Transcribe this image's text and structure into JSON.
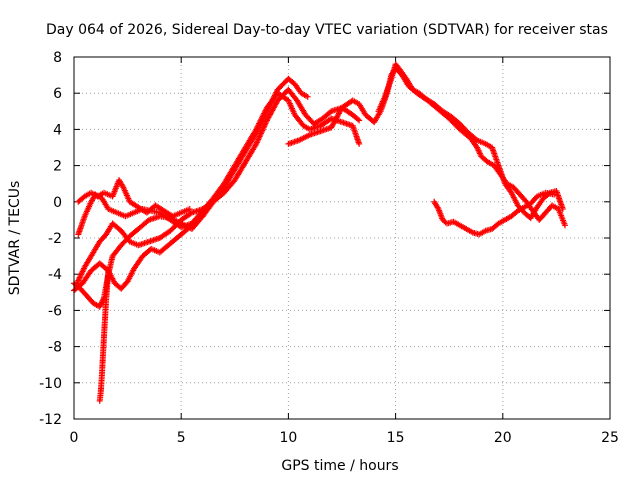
{
  "chart_data": {
    "type": "scatter",
    "title": "Day 064 of 2026, Sidereal Day-to-day VTEC variation (SDTVAR) for receiver stas",
    "xlabel": "GPS time / hours",
    "ylabel": "SDTVAR / TECUs",
    "xlim": [
      0,
      25
    ],
    "ylim": [
      -12,
      8
    ],
    "xticks": [
      0,
      5,
      10,
      15,
      20,
      25
    ],
    "yticks": [
      -12,
      -10,
      -8,
      -6,
      -4,
      -2,
      0,
      2,
      4,
      6,
      8
    ],
    "grid": true,
    "marker": "+",
    "color": "#ff0000",
    "series": [
      {
        "name": "track-1",
        "points": [
          [
            0.0,
            -4.5
          ],
          [
            0.3,
            -4.8
          ],
          [
            0.6,
            -5.2
          ],
          [
            0.9,
            -5.6
          ],
          [
            1.2,
            -5.8
          ],
          [
            1.4,
            -5.3
          ],
          [
            1.6,
            -4.0
          ],
          [
            1.8,
            -3.0
          ],
          [
            2.2,
            -2.4
          ],
          [
            2.6,
            -1.9
          ],
          [
            3.0,
            -1.5
          ],
          [
            3.5,
            -1.0
          ],
          [
            4.0,
            -0.8
          ],
          [
            4.5,
            -0.9
          ],
          [
            5.0,
            -1.2
          ],
          [
            5.5,
            -1.5
          ],
          [
            6.0,
            -0.8
          ],
          [
            6.5,
            0.0
          ],
          [
            7.0,
            0.8
          ],
          [
            7.5,
            1.8
          ],
          [
            8.0,
            2.8
          ],
          [
            8.5,
            3.8
          ],
          [
            9.0,
            5.0
          ],
          [
            9.5,
            6.2
          ],
          [
            10.0,
            6.8
          ],
          [
            10.3,
            6.5
          ],
          [
            10.6,
            6.0
          ],
          [
            10.9,
            5.8
          ]
        ]
      },
      {
        "name": "track-2",
        "points": [
          [
            0.1,
            -4.6
          ],
          [
            0.5,
            -3.6
          ],
          [
            0.9,
            -2.8
          ],
          [
            1.2,
            -2.2
          ],
          [
            1.5,
            -1.8
          ],
          [
            1.8,
            -1.2
          ],
          [
            2.2,
            -1.6
          ],
          [
            2.6,
            -2.2
          ],
          [
            3.0,
            -2.4
          ],
          [
            3.5,
            -2.2
          ],
          [
            4.0,
            -2.0
          ],
          [
            4.5,
            -1.6
          ],
          [
            5.0,
            -1.0
          ],
          [
            5.5,
            -0.6
          ],
          [
            6.0,
            -0.4
          ],
          [
            6.5,
            0.0
          ],
          [
            7.0,
            0.5
          ],
          [
            7.5,
            1.2
          ],
          [
            8.0,
            2.2
          ],
          [
            8.5,
            3.2
          ],
          [
            9.0,
            4.5
          ],
          [
            9.5,
            5.6
          ],
          [
            10.0,
            6.2
          ],
          [
            10.4,
            5.6
          ],
          [
            10.8,
            4.8
          ],
          [
            11.2,
            4.3
          ],
          [
            11.6,
            4.6
          ],
          [
            12.0,
            5.0
          ],
          [
            12.5,
            5.2
          ],
          [
            13.0,
            4.8
          ],
          [
            13.3,
            4.5
          ]
        ]
      },
      {
        "name": "track-3",
        "points": [
          [
            0.2,
            -1.8
          ],
          [
            0.5,
            -0.8
          ],
          [
            0.8,
            0.0
          ],
          [
            1.0,
            0.4
          ],
          [
            1.3,
            0.2
          ],
          [
            1.6,
            -0.4
          ],
          [
            2.0,
            -0.6
          ],
          [
            2.4,
            -0.8
          ],
          [
            2.8,
            -0.6
          ],
          [
            3.2,
            -0.4
          ],
          [
            3.6,
            -0.5
          ],
          [
            4.0,
            -0.6
          ],
          [
            4.5,
            -1.0
          ],
          [
            5.0,
            -1.4
          ],
          [
            5.5,
            -1.2
          ],
          [
            6.0,
            -0.5
          ],
          [
            6.5,
            0.2
          ],
          [
            7.0,
            1.0
          ],
          [
            7.5,
            2.0
          ],
          [
            8.0,
            3.0
          ],
          [
            8.5,
            4.0
          ],
          [
            9.0,
            5.2
          ],
          [
            9.5,
            6.0
          ],
          [
            10.0,
            5.6
          ],
          [
            10.3,
            4.8
          ],
          [
            10.7,
            4.2
          ],
          [
            11.0,
            4.0
          ],
          [
            11.5,
            4.2
          ],
          [
            12.0,
            4.6
          ],
          [
            12.5,
            4.4
          ],
          [
            13.0,
            4.2
          ],
          [
            13.3,
            3.2
          ]
        ]
      },
      {
        "name": "track-4",
        "points": [
          [
            0.2,
            0.0
          ],
          [
            0.5,
            0.3
          ],
          [
            0.8,
            0.5
          ],
          [
            1.1,
            0.3
          ],
          [
            1.4,
            0.5
          ],
          [
            1.8,
            0.3
          ],
          [
            2.1,
            1.2
          ],
          [
            2.3,
            0.8
          ],
          [
            2.6,
            0.0
          ],
          [
            3.0,
            -0.3
          ],
          [
            3.4,
            -0.6
          ],
          [
            3.8,
            -0.2
          ],
          [
            4.2,
            -0.5
          ],
          [
            4.6,
            -0.8
          ],
          [
            5.0,
            -0.6
          ],
          [
            5.4,
            -0.4
          ]
        ]
      },
      {
        "name": "track-5",
        "points": [
          [
            0.0,
            -4.9
          ],
          [
            0.4,
            -4.5
          ],
          [
            0.8,
            -3.8
          ],
          [
            1.2,
            -3.4
          ],
          [
            1.6,
            -3.8
          ],
          [
            1.9,
            -4.5
          ],
          [
            2.2,
            -4.8
          ],
          [
            2.5,
            -4.4
          ],
          [
            2.8,
            -3.7
          ],
          [
            3.2,
            -3.0
          ],
          [
            3.6,
            -2.6
          ],
          [
            4.0,
            -2.8
          ],
          [
            4.4,
            -2.4
          ],
          [
            4.8,
            -2.0
          ],
          [
            5.2,
            -1.6
          ],
          [
            5.6,
            -1.2
          ],
          [
            6.0,
            -0.8
          ]
        ]
      },
      {
        "name": "track-6",
        "points": [
          [
            1.2,
            -11.0
          ],
          [
            1.25,
            -10.5
          ],
          [
            1.3,
            -9.6
          ],
          [
            1.35,
            -8.5
          ],
          [
            1.4,
            -7.4
          ],
          [
            1.45,
            -6.4
          ],
          [
            1.5,
            -5.4
          ],
          [
            1.55,
            -4.6
          ],
          [
            1.6,
            -3.8
          ]
        ]
      },
      {
        "name": "track-7",
        "points": [
          [
            10.0,
            3.2
          ],
          [
            10.5,
            3.4
          ],
          [
            11.0,
            3.7
          ],
          [
            11.5,
            3.9
          ],
          [
            12.0,
            4.1
          ],
          [
            12.5,
            5.2
          ],
          [
            13.0,
            5.6
          ],
          [
            13.3,
            5.4
          ],
          [
            13.6,
            4.8
          ],
          [
            14.0,
            4.4
          ],
          [
            14.3,
            5.0
          ],
          [
            14.6,
            6.0
          ],
          [
            14.8,
            7.0
          ],
          [
            15.0,
            7.4
          ],
          [
            15.3,
            7.0
          ],
          [
            15.6,
            6.4
          ],
          [
            16.0,
            6.0
          ],
          [
            16.5,
            5.6
          ],
          [
            17.0,
            5.1
          ],
          [
            17.5,
            4.6
          ],
          [
            18.0,
            4.0
          ],
          [
            18.5,
            3.5
          ],
          [
            18.8,
            3.0
          ],
          [
            19.0,
            2.5
          ],
          [
            19.3,
            2.2
          ],
          [
            19.6,
            2.0
          ],
          [
            19.9,
            1.5
          ],
          [
            20.2,
            1.0
          ],
          [
            20.5,
            0.8
          ],
          [
            20.8,
            0.4
          ],
          [
            21.1,
            0.0
          ],
          [
            21.4,
            -0.5
          ],
          [
            21.7,
            -1.0
          ],
          [
            22.0,
            -0.6
          ],
          [
            22.3,
            -0.2
          ],
          [
            22.6,
            -0.4
          ],
          [
            22.9,
            -1.3
          ]
        ]
      },
      {
        "name": "track-8",
        "points": [
          [
            14.2,
            5.0
          ],
          [
            14.5,
            5.8
          ],
          [
            14.8,
            6.8
          ],
          [
            15.0,
            7.6
          ],
          [
            15.2,
            7.3
          ],
          [
            15.5,
            6.8
          ],
          [
            15.8,
            6.2
          ],
          [
            16.1,
            6.0
          ],
          [
            16.4,
            5.7
          ],
          [
            16.8,
            5.4
          ],
          [
            17.2,
            5.0
          ],
          [
            17.6,
            4.7
          ],
          [
            18.0,
            4.3
          ],
          [
            18.4,
            3.8
          ],
          [
            18.8,
            3.4
          ],
          [
            19.2,
            3.2
          ],
          [
            19.5,
            3.0
          ],
          [
            19.8,
            2.0
          ],
          [
            20.1,
            1.0
          ],
          [
            20.4,
            0.5
          ],
          [
            20.7,
            -0.2
          ],
          [
            21.0,
            -0.6
          ],
          [
            21.3,
            -0.9
          ],
          [
            21.6,
            -0.3
          ],
          [
            21.9,
            0.2
          ],
          [
            22.2,
            0.5
          ],
          [
            22.5,
            0.6
          ],
          [
            22.8,
            -0.4
          ]
        ]
      },
      {
        "name": "track-9",
        "points": [
          [
            16.8,
            0.0
          ],
          [
            17.0,
            -0.4
          ],
          [
            17.2,
            -1.0
          ],
          [
            17.4,
            -1.2
          ],
          [
            17.7,
            -1.1
          ],
          [
            18.0,
            -1.3
          ],
          [
            18.3,
            -1.5
          ],
          [
            18.6,
            -1.7
          ],
          [
            18.9,
            -1.8
          ],
          [
            19.2,
            -1.6
          ],
          [
            19.5,
            -1.5
          ],
          [
            19.8,
            -1.2
          ],
          [
            20.1,
            -1.0
          ],
          [
            20.4,
            -0.8
          ],
          [
            20.7,
            -0.5
          ],
          [
            21.0,
            -0.3
          ],
          [
            21.3,
            -0.1
          ],
          [
            21.6,
            0.3
          ],
          [
            22.0,
            0.5
          ],
          [
            22.4,
            0.4
          ]
        ]
      }
    ]
  }
}
